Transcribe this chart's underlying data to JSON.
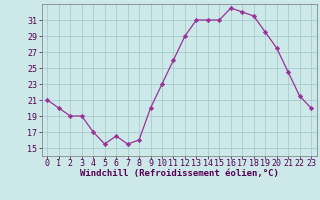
{
  "x": [
    0,
    1,
    2,
    3,
    4,
    5,
    6,
    7,
    8,
    9,
    10,
    11,
    12,
    13,
    14,
    15,
    16,
    17,
    18,
    19,
    20,
    21,
    22,
    23
  ],
  "y": [
    21,
    20,
    19,
    19,
    17,
    15.5,
    16.5,
    15.5,
    16,
    20,
    23,
    26,
    29,
    31,
    31,
    31,
    32.5,
    32,
    31.5,
    29.5,
    27.5,
    24.5,
    21.5,
    20
  ],
  "line_color": "#993399",
  "marker": "D",
  "marker_size": 2.2,
  "background_color": "#cce8e8",
  "grid_color": "#aacccc",
  "xlabel": "Windchill (Refroidissement éolien,°C)",
  "xlabel_fontsize": 6.5,
  "tick_fontsize": 6.0,
  "ylim": [
    14,
    33
  ],
  "xlim": [
    -0.5,
    23.5
  ],
  "yticks": [
    15,
    17,
    19,
    21,
    23,
    25,
    27,
    29,
    31
  ],
  "xticks": [
    0,
    1,
    2,
    3,
    4,
    5,
    6,
    7,
    8,
    9,
    10,
    11,
    12,
    13,
    14,
    15,
    16,
    17,
    18,
    19,
    20,
    21,
    22,
    23
  ]
}
